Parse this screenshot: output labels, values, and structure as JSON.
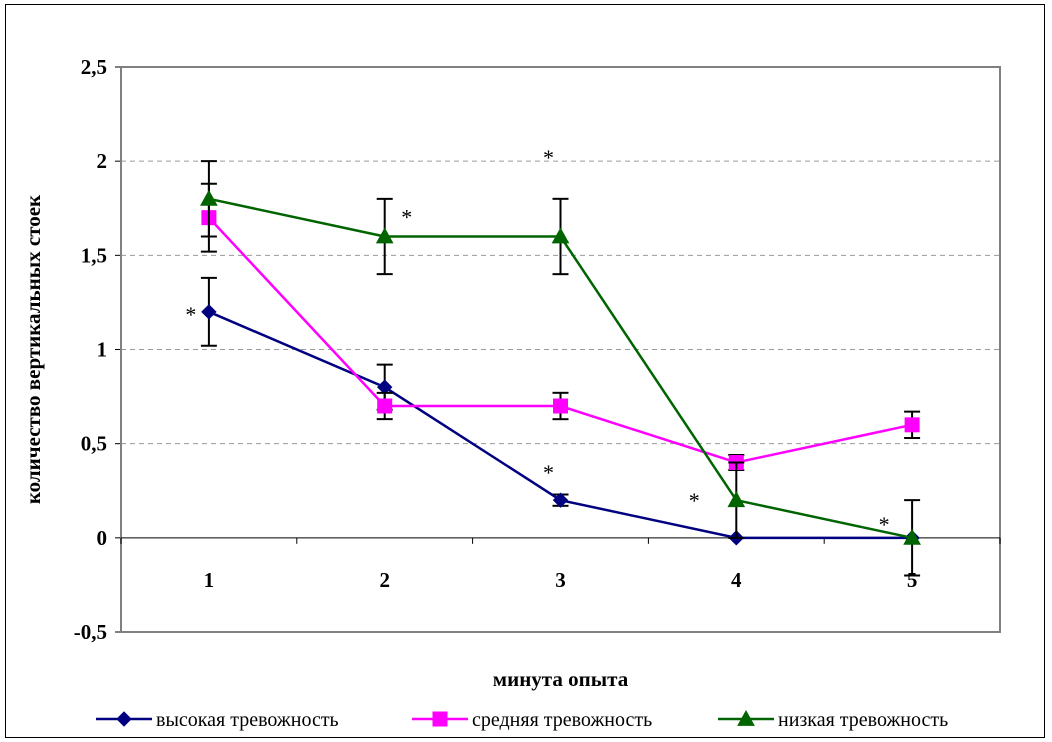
{
  "chart_data": {
    "type": "line",
    "title": "",
    "xlabel": "минута опыта",
    "ylabel": "количество вертикальных стоек",
    "categories": [
      "1",
      "2",
      "3",
      "4",
      "5"
    ],
    "ylim": [
      -0.5,
      2.5
    ],
    "yticks": [
      "2,5",
      "2",
      "1,5",
      "1",
      "0,5",
      "0",
      "-0,5"
    ],
    "ytick_values": [
      2.5,
      2,
      1.5,
      1,
      0.5,
      0,
      -0.5
    ],
    "grid": "dashed horizontal",
    "legend_position": "bottom",
    "series": [
      {
        "name": "высокая тревожность",
        "color": "#000080",
        "marker": "diamond",
        "values": [
          1.2,
          0.8,
          0.2,
          0,
          0
        ],
        "errors": [
          0.18,
          0.12,
          0.03,
          0,
          0
        ]
      },
      {
        "name": "средняя тревожность",
        "color": "#ff00ff",
        "marker": "square",
        "values": [
          1.7,
          0.7,
          0.7,
          0.4,
          0.6
        ],
        "errors": [
          0.18,
          0.07,
          0.07,
          0.04,
          0.07
        ]
      },
      {
        "name": "низкая тревожность",
        "color": "#006400",
        "marker": "triangle",
        "values": [
          1.8,
          1.6,
          1.6,
          0.2,
          0
        ],
        "errors": [
          0.2,
          0.2,
          0.2,
          0.2,
          0.2
        ]
      }
    ],
    "annotations": [
      {
        "text": "*",
        "category": "1",
        "value": 1.2
      },
      {
        "text": "*",
        "category": "2",
        "value": 1.6
      },
      {
        "text": "*",
        "category": "3",
        "value": 1.8
      },
      {
        "text": "*",
        "category": "3",
        "value": 0.2
      },
      {
        "text": "*",
        "category": "4",
        "value": 0.2
      },
      {
        "text": "*",
        "category": "5",
        "value": 0
      }
    ]
  }
}
